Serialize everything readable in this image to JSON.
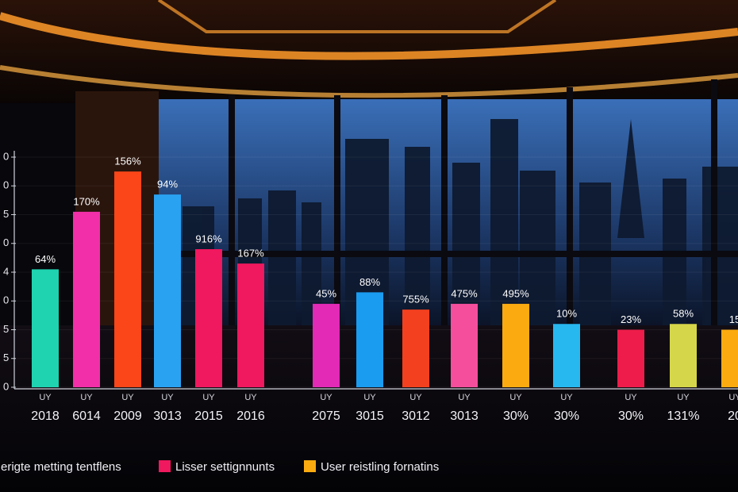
{
  "chart_data": {
    "type": "bar",
    "categories": [
      "2018",
      "6014",
      "2009",
      "3013",
      "2015",
      "2016",
      "2075",
      "3015",
      "3012",
      "3013",
      "30%",
      "30%",
      "30%",
      "131%",
      "20"
    ],
    "values": [
      4.1,
      6.1,
      7.5,
      6.7,
      4.8,
      4.3,
      2.9,
      3.3,
      2.7,
      2.9,
      2.9,
      2.2,
      2.0,
      2.2,
      2.0
    ],
    "colors": [
      "#1fd3b0",
      "#f22fa8",
      "#fa4618",
      "#2aa2f2",
      "#f0185e",
      "#f0185e",
      "#e22ab6",
      "#1a9cf0",
      "#f3401e",
      "#f54e9c",
      "#fbab10",
      "#28b8f0",
      "#ee1c4a",
      "#d6d64a",
      "#fbab10"
    ],
    "bar_labels": [
      "64%",
      "170%",
      "156%",
      "94%",
      "916%",
      "167%",
      "45%",
      "88%",
      "755%",
      "475%",
      "495%",
      "10%",
      "23%",
      "58%",
      "15"
    ],
    "sub_labels": [
      "UY",
      "UY",
      "UY",
      "UY",
      "UY",
      "UY",
      "UY",
      "UY",
      "UY",
      "UY",
      "UY",
      "UY",
      "UY",
      "UY",
      "UY"
    ],
    "ylim": [
      0,
      8
    ],
    "yticks": [
      0,
      {
        "value": 1,
        "label": "5"
      },
      {
        "value": 2,
        "label": "5"
      },
      {
        "value": 3,
        "label": "0"
      },
      4,
      {
        "value": 5,
        "label": "0"
      },
      {
        "value": 6,
        "label": "5"
      },
      {
        "value": 7,
        "label": "0"
      },
      {
        "value": 8,
        "label": "0"
      }
    ],
    "legend": [
      {
        "name": "erigte metting tentflens",
        "color": "#1fd3b0"
      },
      {
        "name": "Lisser settignnunts",
        "color": "#f0185e"
      },
      {
        "name": "User reistling fornatins",
        "color": "#fbab10"
      }
    ]
  }
}
